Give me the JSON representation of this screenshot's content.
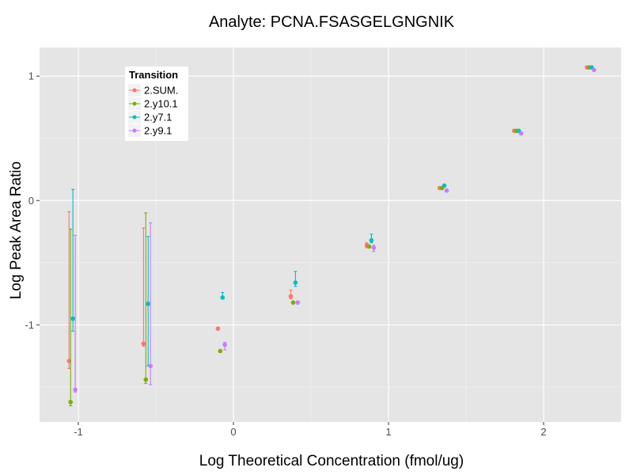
{
  "chart_data": {
    "type": "scatter",
    "title": "Analyte: PCNA.FSASGELGNGNIK",
    "xlabel": "Log Theoretical Concentration (fmol/ug)",
    "ylabel": "Log Peak Area Ratio",
    "xlim": [
      -1.25,
      2.5
    ],
    "ylim": [
      -1.78,
      1.23
    ],
    "x_ticks": [
      -1,
      0,
      1,
      2
    ],
    "y_ticks": [
      -1,
      0,
      1
    ],
    "x_tick_labels": [
      "-1",
      "0",
      "1",
      "2"
    ],
    "y_tick_labels": [
      "-1",
      "0",
      "1"
    ],
    "grid": true,
    "legend": {
      "title": "Transition",
      "position": "top-left"
    },
    "series": [
      {
        "name": "2.SUM.",
        "color": "#F8766D",
        "points": [
          {
            "x": -1.06,
            "y": -1.29,
            "ylo": -1.35,
            "yhi": -0.09
          },
          {
            "x": -0.58,
            "y": -1.15,
            "ylo": -1.17,
            "yhi": -0.22
          },
          {
            "x": -0.1,
            "y": -1.03
          },
          {
            "x": 0.37,
            "y": -0.77,
            "ylo": -0.79,
            "yhi": -0.72
          },
          {
            "x": 0.86,
            "y": -0.36,
            "ylo": -0.38,
            "yhi": -0.34
          },
          {
            "x": 1.33,
            "y": 0.1
          },
          {
            "x": 1.81,
            "y": 0.56
          },
          {
            "x": 2.28,
            "y": 1.07
          }
        ]
      },
      {
        "name": "2.y10.1",
        "color": "#7CAE00",
        "points": [
          {
            "x": -1.05,
            "y": -1.62,
            "ylo": -1.65,
            "yhi": -0.23
          },
          {
            "x": -0.565,
            "y": -1.44,
            "ylo": -1.47,
            "yhi": -0.1
          },
          {
            "x": -0.085,
            "y": -1.21
          },
          {
            "x": 0.385,
            "y": -0.82
          },
          {
            "x": 0.875,
            "y": -0.37
          },
          {
            "x": 1.345,
            "y": 0.1
          },
          {
            "x": 1.825,
            "y": 0.56
          },
          {
            "x": 2.295,
            "y": 1.07
          }
        ]
      },
      {
        "name": "2.y7.1",
        "color": "#00BFC4",
        "points": [
          {
            "x": -1.035,
            "y": -0.95,
            "ylo": -1.05,
            "yhi": 0.09
          },
          {
            "x": -0.55,
            "y": -0.83,
            "ylo": -1.33,
            "yhi": -0.29
          },
          {
            "x": -0.07,
            "y": -0.78,
            "ylo": -0.79,
            "yhi": -0.74
          },
          {
            "x": 0.4,
            "y": -0.66,
            "ylo": -0.69,
            "yhi": -0.57
          },
          {
            "x": 0.89,
            "y": -0.32,
            "ylo": -0.34,
            "yhi": -0.27
          },
          {
            "x": 1.36,
            "y": 0.12
          },
          {
            "x": 1.84,
            "y": 0.56
          },
          {
            "x": 2.31,
            "y": 1.07
          }
        ]
      },
      {
        "name": "2.y9.1",
        "color": "#C77CFF",
        "points": [
          {
            "x": -1.02,
            "y": -1.52,
            "ylo": -1.54,
            "yhi": -0.28
          },
          {
            "x": -0.535,
            "y": -1.33,
            "ylo": -1.48,
            "yhi": -0.18
          },
          {
            "x": -0.055,
            "y": -1.16,
            "ylo": -1.2,
            "yhi": -1.14
          },
          {
            "x": 0.415,
            "y": -0.82
          },
          {
            "x": 0.905,
            "y": -0.38,
            "ylo": -0.41,
            "yhi": -0.36
          },
          {
            "x": 1.375,
            "y": 0.08
          },
          {
            "x": 1.855,
            "y": 0.54
          },
          {
            "x": 2.325,
            "y": 1.05
          }
        ]
      }
    ]
  }
}
